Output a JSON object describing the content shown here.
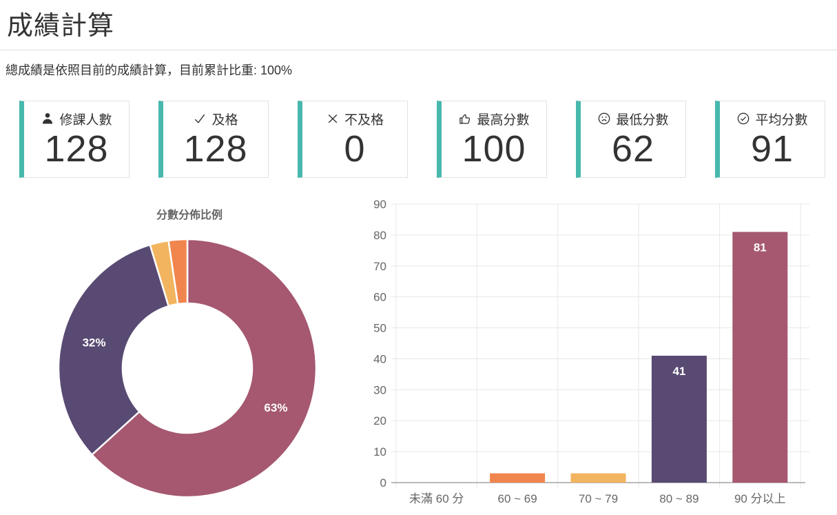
{
  "page": {
    "title": "成績計算",
    "subtitle": "總成績是依照目前的成績計算，目前累計比重: 100%"
  },
  "stats": [
    {
      "label": "修課人數",
      "value": "128",
      "icon": "person-icon"
    },
    {
      "label": "及格",
      "value": "128",
      "icon": "check-icon"
    },
    {
      "label": "不及格",
      "value": "0",
      "icon": "x-icon"
    },
    {
      "label": "最高分數",
      "value": "100",
      "icon": "thumbs-up-icon"
    },
    {
      "label": "最低分數",
      "value": "62",
      "icon": "sad-face-icon"
    },
    {
      "label": "平均分數",
      "value": "91",
      "icon": "check-circle-icon"
    }
  ],
  "colors": {
    "accent_teal": "#47b8ae",
    "orange": "#f0864d",
    "amber": "#f2b45f",
    "purple": "#594a73",
    "maroon": "#a5586f",
    "text_dark": "#333333",
    "axis_text": "#666666",
    "gridline": "#e7e7e7",
    "axis_line": "#a3a3a3"
  },
  "chart_data": [
    {
      "type": "pie",
      "donut": true,
      "title": "分數分佈比例",
      "labels": [
        "90 分以上",
        "80 ~ 89",
        "70 ~ 79",
        "60 ~ 69"
      ],
      "values": [
        81,
        41,
        3,
        3
      ],
      "total": 128,
      "percent_labels": [
        "63%",
        "32%",
        "",
        ""
      ],
      "colors": [
        "#a5586f",
        "#594a73",
        "#f2b45f",
        "#f0864d"
      ],
      "start_angle_deg": -90,
      "direction": "clockwise",
      "legend_position": "none"
    },
    {
      "type": "bar",
      "categories": [
        "未滿 60 分",
        "60 ~ 69",
        "70 ~ 79",
        "80 ~ 89",
        "90 分以上"
      ],
      "values": [
        0,
        3,
        3,
        41,
        81
      ],
      "bar_labels": [
        "",
        "",
        "",
        "41",
        "81"
      ],
      "colors": [
        null,
        "#f0864d",
        "#f2b45f",
        "#594a73",
        "#a5586f"
      ],
      "title": "",
      "xlabel": "",
      "ylabel": "",
      "ylim": [
        0,
        90
      ],
      "yticks": [
        0,
        10,
        20,
        30,
        40,
        50,
        60,
        70,
        80,
        90
      ],
      "grid": true,
      "legend_position": "none"
    }
  ]
}
